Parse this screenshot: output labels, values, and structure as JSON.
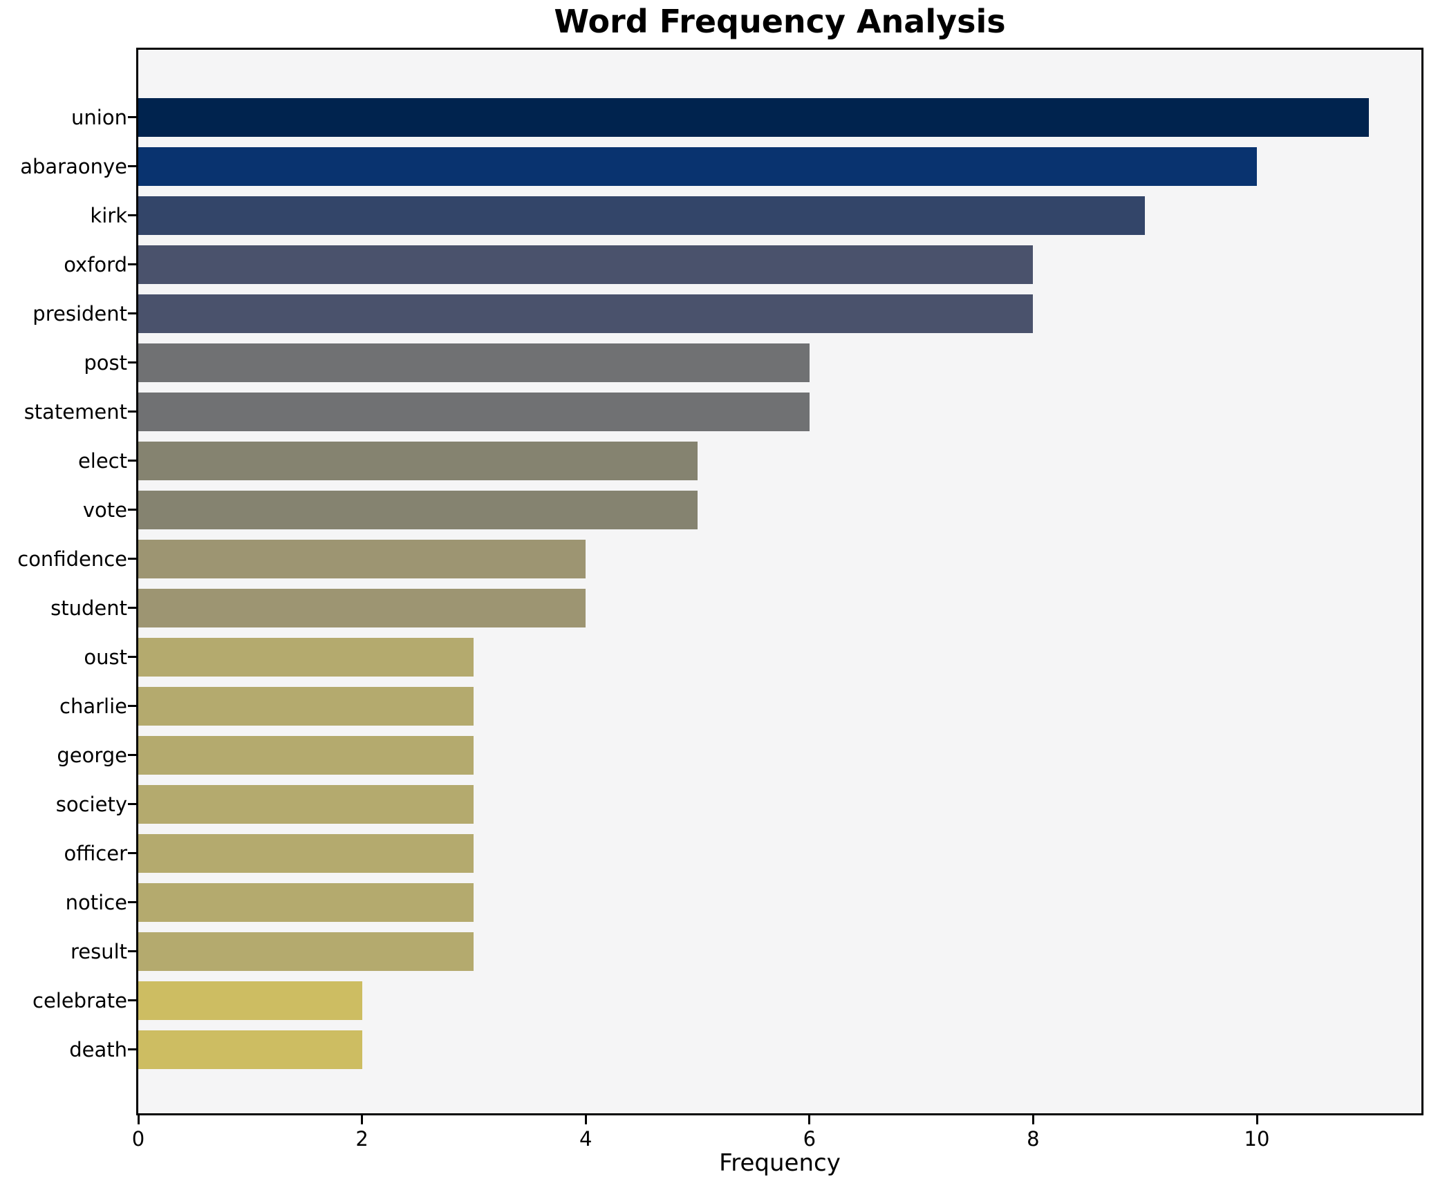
{
  "chart_data": {
    "type": "bar",
    "orientation": "horizontal",
    "title": "Word Frequency Analysis",
    "xlabel": "Frequency",
    "ylabel": "",
    "categories": [
      "union",
      "abaraonye",
      "kirk",
      "oxford",
      "president",
      "post",
      "statement",
      "elect",
      "vote",
      "confidence",
      "student",
      "oust",
      "charlie",
      "george",
      "society",
      "officer",
      "notice",
      "result",
      "celebrate",
      "death"
    ],
    "values": [
      11,
      10,
      9,
      8,
      8,
      6,
      6,
      5,
      5,
      4,
      4,
      3,
      3,
      3,
      3,
      3,
      3,
      3,
      2,
      2
    ],
    "bar_colors": [
      "#00234e",
      "#09336f",
      "#334569",
      "#4a526c",
      "#4a526c",
      "#707173",
      "#707173",
      "#858370",
      "#858370",
      "#9d9572",
      "#9d9572",
      "#b4aa6e",
      "#b4aa6e",
      "#b4aa6e",
      "#b4aa6e",
      "#b4aa6e",
      "#b4aa6e",
      "#b4aa6e",
      "#cdbd62",
      "#cdbd62"
    ],
    "x_ticks": [
      0,
      2,
      4,
      6,
      8,
      10
    ],
    "xlim": [
      0,
      11.47
    ],
    "grid": false,
    "legend": null,
    "plot_background": "#f5f5f6",
    "spine_color": "#000000"
  }
}
